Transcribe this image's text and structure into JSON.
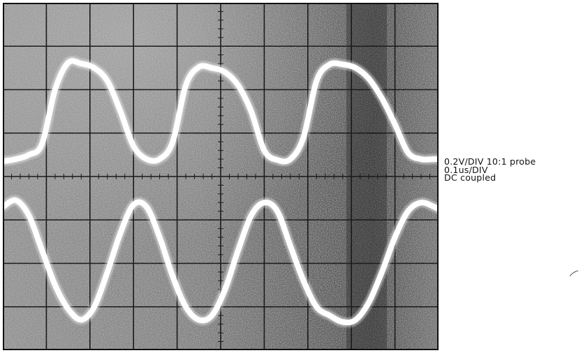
{
  "settings": {
    "vertical": "0.2V/DIV 10:1 probe",
    "timebase": "0.1us/DIV",
    "coupling": "DC coupled"
  },
  "chart_data": {
    "type": "line",
    "title": "",
    "xlabel": "",
    "ylabel": "",
    "grid": true,
    "grid_divisions": {
      "x": 10,
      "y": 8
    },
    "xlim": [
      0,
      10
    ],
    "ylim": [
      -4,
      4
    ],
    "x_unit": "div (0.1us/DIV)",
    "y_unit": "div (0.2V/DIV)",
    "series": [
      {
        "x": [
          0,
          0.3,
          0.6,
          0.9,
          1.2,
          1.5,
          1.8,
          2.1,
          2.4,
          2.7,
          3.0,
          3.3,
          3.6,
          3.9,
          4.2,
          4.5,
          4.8,
          5.1,
          5.4,
          5.7,
          6.0,
          6.3,
          6.6,
          6.9,
          7.2,
          7.5,
          7.8,
          8.1,
          8.4,
          8.7,
          9.0,
          9.3,
          9.6,
          9.9,
          10.0
        ],
        "y": [
          0.35,
          0.4,
          0.5,
          0.75,
          2.0,
          2.62,
          2.6,
          2.5,
          2.2,
          1.5,
          0.7,
          0.4,
          0.4,
          0.8,
          2.1,
          2.52,
          2.5,
          2.4,
          2.1,
          1.5,
          0.6,
          0.38,
          0.4,
          0.9,
          2.2,
          2.58,
          2.58,
          2.5,
          2.25,
          1.8,
          1.2,
          0.55,
          0.4,
          0.4,
          0.4
        ]
      },
      {
        "x": [
          0,
          0.3,
          0.6,
          0.9,
          1.2,
          1.5,
          1.8,
          2.1,
          2.4,
          2.7,
          3.0,
          3.3,
          3.6,
          3.9,
          4.2,
          4.5,
          4.8,
          5.1,
          5.4,
          5.7,
          6.0,
          6.3,
          6.6,
          6.9,
          7.2,
          7.5,
          7.8,
          8.1,
          8.4,
          8.7,
          9.0,
          9.3,
          9.6,
          9.9,
          10.0
        ],
        "y": [
          -0.7,
          -0.55,
          -0.9,
          -1.7,
          -2.5,
          -3.05,
          -3.3,
          -3.0,
          -2.2,
          -1.3,
          -0.65,
          -0.7,
          -1.4,
          -2.3,
          -3.0,
          -3.3,
          -3.2,
          -2.6,
          -1.7,
          -0.9,
          -0.6,
          -0.8,
          -1.6,
          -2.4,
          -3.0,
          -3.2,
          -3.35,
          -3.3,
          -2.9,
          -2.2,
          -1.4,
          -0.8,
          -0.6,
          -0.7,
          -0.75
        ]
      }
    ]
  }
}
